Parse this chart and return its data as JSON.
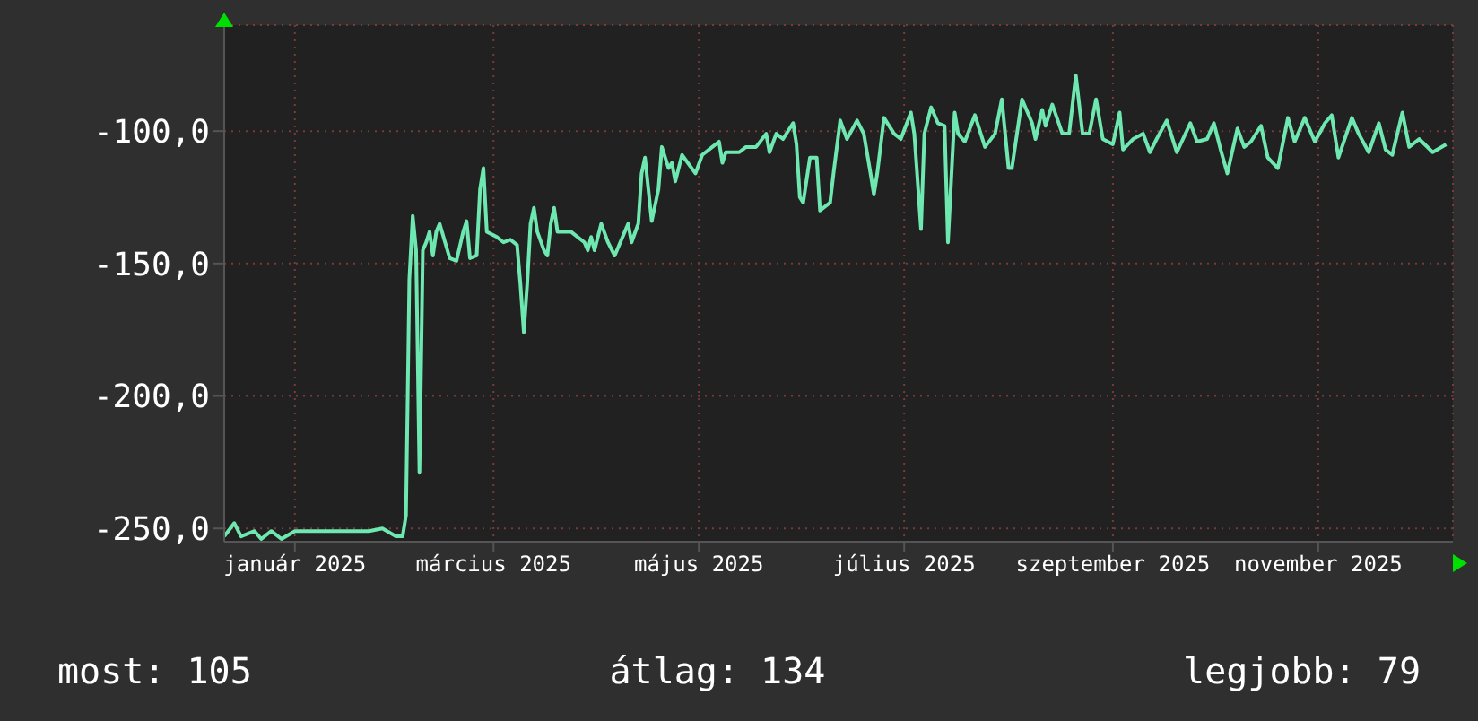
{
  "chart_data": {
    "type": "line",
    "xlim": [
      "2024-12-11",
      "2025-12-11"
    ],
    "ylim": [
      -255,
      -60
    ],
    "xticks": [
      {
        "value": "2025-01-01",
        "label": "január 2025"
      },
      {
        "value": "2025-03-01",
        "label": "március 2025"
      },
      {
        "value": "2025-05-01",
        "label": "május 2025"
      },
      {
        "value": "2025-07-01",
        "label": "július 2025"
      },
      {
        "value": "2025-09-01",
        "label": "szeptember 2025"
      },
      {
        "value": "2025-11-01",
        "label": "november 2025"
      }
    ],
    "yticks": [
      {
        "value": -100,
        "label": "-100,0"
      },
      {
        "value": -150,
        "label": "-150,0"
      },
      {
        "value": -200,
        "label": "-200,0"
      },
      {
        "value": -250,
        "label": "-250,0"
      }
    ],
    "grid": true,
    "marker": "none",
    "line_style": "solid",
    "annotations": [
      "most: 105",
      "átlag: 134",
      "legjobb: 79"
    ],
    "x": [
      "2024-12-11",
      "2024-12-14",
      "2024-12-16",
      "2024-12-20",
      "2024-12-22",
      "2024-12-25",
      "2024-12-28",
      "2025-01-01",
      "2025-01-05",
      "2025-01-09",
      "2025-01-14",
      "2025-01-18",
      "2025-01-23",
      "2025-01-27",
      "2025-01-31",
      "2025-02-02",
      "2025-02-03",
      "2025-02-04",
      "2025-02-05",
      "2025-02-06",
      "2025-02-07",
      "2025-02-08",
      "2025-02-09",
      "2025-02-10",
      "2025-02-11",
      "2025-02-12",
      "2025-02-13",
      "2025-02-16",
      "2025-02-18",
      "2025-02-20",
      "2025-02-21",
      "2025-02-22",
      "2025-02-24",
      "2025-02-25",
      "2025-02-26",
      "2025-02-27",
      "2025-03-02",
      "2025-03-04",
      "2025-03-06",
      "2025-03-08",
      "2025-03-09",
      "2025-03-10",
      "2025-03-11",
      "2025-03-12",
      "2025-03-13",
      "2025-03-14",
      "2025-03-16",
      "2025-03-17",
      "2025-03-18",
      "2025-03-19",
      "2025-03-20",
      "2025-03-24",
      "2025-03-28",
      "2025-03-29",
      "2025-03-30",
      "2025-03-31",
      "2025-04-02",
      "2025-04-04",
      "2025-04-06",
      "2025-04-09",
      "2025-04-10",
      "2025-04-11",
      "2025-04-13",
      "2025-04-14",
      "2025-04-15",
      "2025-04-16",
      "2025-04-17",
      "2025-04-19",
      "2025-04-20",
      "2025-04-22",
      "2025-04-23",
      "2025-04-24",
      "2025-04-26",
      "2025-04-30",
      "2025-05-02",
      "2025-05-05",
      "2025-05-07",
      "2025-05-08",
      "2025-05-09",
      "2025-05-13",
      "2025-05-15",
      "2025-05-18",
      "2025-05-21",
      "2025-05-22",
      "2025-05-24",
      "2025-05-26",
      "2025-05-29",
      "2025-05-30",
      "2025-05-31",
      "2025-06-01",
      "2025-06-03",
      "2025-06-05",
      "2025-06-06",
      "2025-06-09",
      "2025-06-10",
      "2025-06-12",
      "2025-06-14",
      "2025-06-17",
      "2025-06-19",
      "2025-06-21",
      "2025-06-22",
      "2025-06-23",
      "2025-06-25",
      "2025-06-28",
      "2025-06-30",
      "2025-07-03",
      "2025-07-04",
      "2025-07-06",
      "2025-07-07",
      "2025-07-09",
      "2025-07-11",
      "2025-07-13",
      "2025-07-14",
      "2025-07-16",
      "2025-07-17",
      "2025-07-19",
      "2025-07-22",
      "2025-07-25",
      "2025-07-28",
      "2025-07-30",
      "2025-08-01",
      "2025-08-02",
      "2025-08-05",
      "2025-08-08",
      "2025-08-09",
      "2025-08-11",
      "2025-08-12",
      "2025-08-14",
      "2025-08-17",
      "2025-08-19",
      "2025-08-21",
      "2025-08-23",
      "2025-08-25",
      "2025-08-27",
      "2025-08-29",
      "2025-09-01",
      "2025-09-03",
      "2025-09-04",
      "2025-09-07",
      "2025-09-10",
      "2025-09-12",
      "2025-09-14",
      "2025-09-17",
      "2025-09-20",
      "2025-09-24",
      "2025-09-26",
      "2025-09-29",
      "2025-10-01",
      "2025-10-03",
      "2025-10-05",
      "2025-10-08",
      "2025-10-10",
      "2025-10-12",
      "2025-10-15",
      "2025-10-17",
      "2025-10-20",
      "2025-10-23",
      "2025-10-25",
      "2025-10-28",
      "2025-10-31",
      "2025-11-03",
      "2025-11-05",
      "2025-11-07",
      "2025-11-11",
      "2025-11-13",
      "2025-11-16",
      "2025-11-19",
      "2025-11-21",
      "2025-11-23",
      "2025-11-26",
      "2025-11-28",
      "2025-12-01",
      "2025-12-05",
      "2025-12-09"
    ],
    "series": [
      {
        "color": "#6ee8b0",
        "values": [
          -253,
          -248,
          -253,
          -251,
          -254,
          -251,
          -254,
          -251,
          -251,
          -251,
          -251,
          -251,
          -251,
          -250,
          -253,
          -253,
          -245,
          -156,
          -132,
          -145,
          -229,
          -145,
          -142,
          -138,
          -147,
          -138,
          -135,
          -148,
          -149,
          -138,
          -134,
          -148,
          -147,
          -122,
          -114,
          -138,
          -140,
          -142,
          -141,
          -143,
          -158,
          -176,
          -158,
          -135,
          -129,
          -138,
          -145,
          -147,
          -135,
          -129,
          -138,
          -138,
          -142,
          -145,
          -140,
          -145,
          -135,
          -142,
          -147,
          -138,
          -135,
          -142,
          -135,
          -116,
          -110,
          -122,
          -134,
          -122,
          -106,
          -114,
          -112,
          -119,
          -109,
          -116,
          -109,
          -106,
          -104,
          -112,
          -108,
          -108,
          -106,
          -106,
          -101,
          -108,
          -101,
          -103,
          -97,
          -105,
          -125,
          -127,
          -110,
          -110,
          -130,
          -127,
          -116,
          -96,
          -103,
          -96,
          -101,
          -116,
          -124,
          -116,
          -95,
          -101,
          -103,
          -93,
          -101,
          -137,
          -101,
          -91,
          -97,
          -98,
          -142,
          -93,
          -101,
          -104,
          -94,
          -106,
          -101,
          -88,
          -114,
          -114,
          -88,
          -97,
          -103,
          -92,
          -98,
          -90,
          -101,
          -101,
          -79,
          -101,
          -101,
          -88,
          -103,
          -105,
          -93,
          -107,
          -103,
          -101,
          -108,
          -103,
          -96,
          -108,
          -97,
          -104,
          -103,
          -97,
          -107,
          -116,
          -99,
          -106,
          -104,
          -98,
          -110,
          -114,
          -95,
          -104,
          -95,
          -104,
          -97,
          -94,
          -110,
          -95,
          -101,
          -108,
          -97,
          -107,
          -109,
          -93,
          -106,
          -103,
          -108,
          -105
        ]
      }
    ]
  }
}
